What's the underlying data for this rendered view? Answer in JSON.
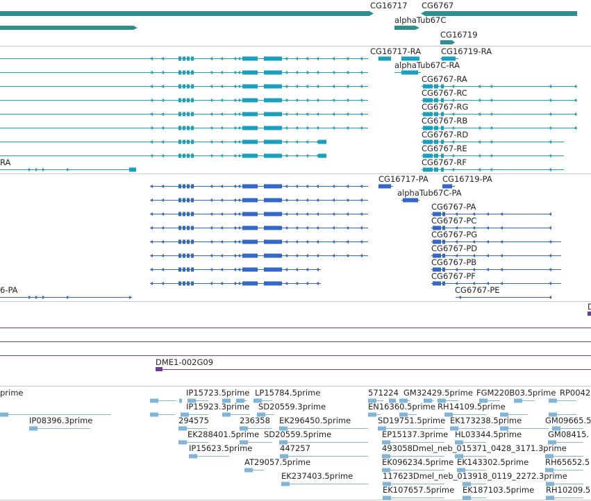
{
  "colors": {
    "gene": "#2d8f8f",
    "transcript_rna": "#1aa0bf",
    "protein": "#3366cc",
    "clone": "#6a3d9a",
    "est": "#7fb5d9",
    "separator": "#c9c9c9"
  },
  "genes": {
    "cg16717": "CG16717",
    "cg6767": "CG6767",
    "alphatub67c": "alphaTub67C",
    "cg16719": "CG16719"
  },
  "transcripts": {
    "cg16717_ra": "CG16717-RA",
    "cg16719_ra": "CG16719-RA",
    "alphatub67c_ra": "alphaTub67C-RA",
    "cg6767_ra": "CG6767-RA",
    "cg6767_rc": "CG6767-RC",
    "cg6767_rg": "CG6767-RG",
    "cg6767_rb": "CG6767-RB",
    "cg6767_rd": "CG6767-RD",
    "cg6767_re": "CG6767-RE",
    "cg6767_rf": "CG6767-RF",
    "left_ra": "RA"
  },
  "proteins": {
    "cg16717_pa": "CG16717-PA",
    "cg16719_pa": "CG16719-PA",
    "alphatub67c_pa": "alphaTub67C-PA",
    "cg6767_pa": "CG6767-PA",
    "cg6767_pc": "CG6767-PC",
    "cg6767_pg": "CG6767-PG",
    "cg6767_pd": "CG6767-PD",
    "cg6767_pb": "CG6767-PB",
    "cg6767_pf": "CG6767-PF",
    "cg6767_pe": "CG6767-PE",
    "left_pa": "6-PA"
  },
  "clones": {
    "dme1": "DME1-002G09",
    "edge": "D"
  },
  "ests": {
    "prime_left": "prime",
    "ip15723": "IP15723.5prime",
    "lp15784": "LP15784.5prime",
    "c571224": "571224",
    "gm32429": "GM32429.5prime",
    "fgm220b03": "FGM220B03.5prime",
    "rp0042": "RP0042",
    "ip15923": "IP15923.3prime",
    "sd20559_a": "SD20559.3prime",
    "en16360": "EN16360.5prime",
    "rh14109": "RH14109.5prime",
    "ip08396": "IP08396.3prime",
    "c294575": "294575",
    "c236358": "236358",
    "ek296450": "EK296450.5prime",
    "sd19751": "SD19751.5prime",
    "ek173238": "EK173238.5prime",
    "gm09665": "GM09665.5",
    "ek288401": "EK288401.5prime",
    "sd20559_b": "SD20559.5prime",
    "ep15137": "EP15137.3prime",
    "hl03344": "HL03344.5prime",
    "gm08415": "GM08415.",
    "ip15623": "IP15623.5prime",
    "c447257": "447257",
    "dmel_015371": "493058Dmel_neb_015371_0428_3171.3prime",
    "at29057": "AT29057.5prime",
    "ek096234": "EK096234.5prime",
    "ek143302": "EK143302.5prime",
    "rh65652": "RH65652.5",
    "ek237403": "EK237403.5prime",
    "dmel_013918": "117623Dmel_neb_013918_0119_2272.3prime",
    "ek107657": "EK107657.5prime",
    "ek187103": "EK187103.5prime",
    "rh10209": "RH10209.5"
  }
}
